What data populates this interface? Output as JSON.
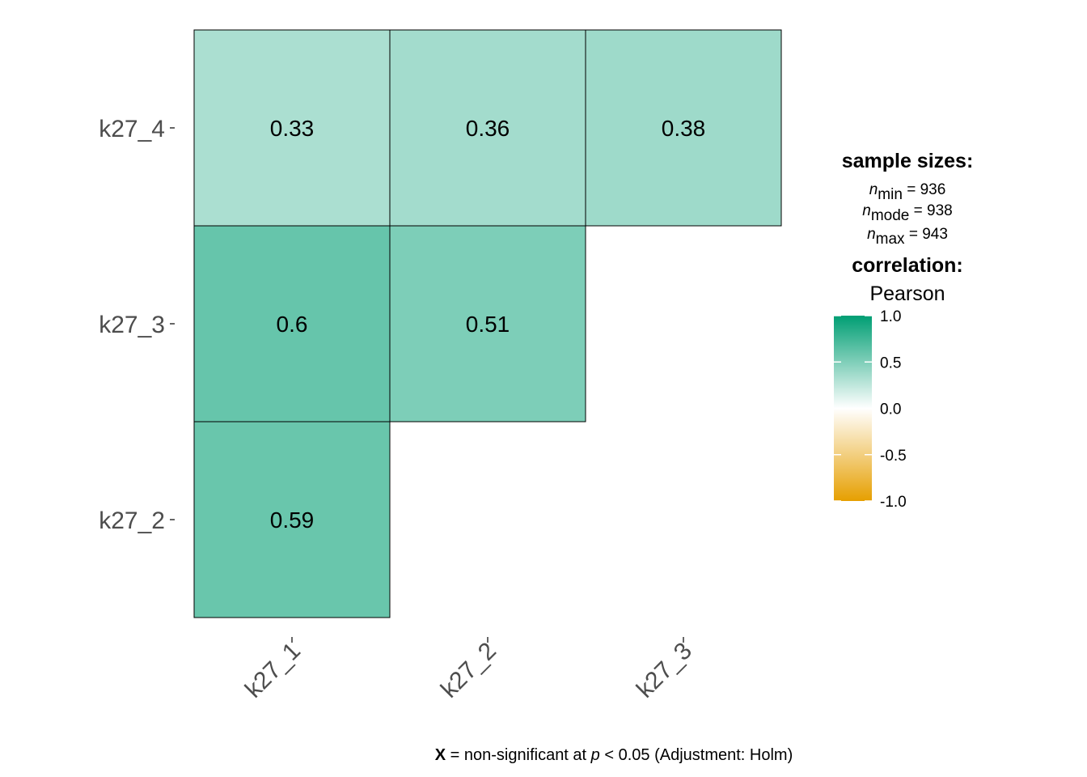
{
  "chart_data": {
    "type": "heatmap",
    "x_categories": [
      "k27_1",
      "k27_2",
      "k27_3"
    ],
    "y_categories": [
      "k27_4",
      "k27_3",
      "k27_2"
    ],
    "cells": [
      {
        "x": "k27_1",
        "y": "k27_4",
        "value": 0.33,
        "label": "0.33"
      },
      {
        "x": "k27_2",
        "y": "k27_4",
        "value": 0.36,
        "label": "0.36"
      },
      {
        "x": "k27_3",
        "y": "k27_4",
        "value": 0.38,
        "label": "0.38"
      },
      {
        "x": "k27_1",
        "y": "k27_3",
        "value": 0.6,
        "label": "0.6"
      },
      {
        "x": "k27_2",
        "y": "k27_3",
        "value": 0.51,
        "label": "0.51"
      },
      {
        "x": "k27_1",
        "y": "k27_2",
        "value": 0.59,
        "label": "0.59"
      }
    ],
    "legend": {
      "sample_sizes_title": "sample sizes:",
      "n_symbol": "n",
      "n_stats": [
        {
          "sub": "min",
          "text": " = 936"
        },
        {
          "sub": "mode",
          "text": " = 938"
        },
        {
          "sub": "max",
          "text": " = 943"
        }
      ],
      "correlation_title": "correlation:",
      "method": "Pearson",
      "scale_range": [
        -1,
        1
      ],
      "scale_ticks": [
        "1.0",
        "0.5",
        "0.0",
        "-0.5",
        "-1.0"
      ],
      "colors": {
        "high": "#009E73",
        "mid": "#ffffff",
        "low": "#E69F00"
      }
    },
    "caption": {
      "bold": "X",
      "text1": " = non-significant at ",
      "italic": "p",
      "text2": " < 0.05 (Adjustment: Holm)"
    }
  }
}
